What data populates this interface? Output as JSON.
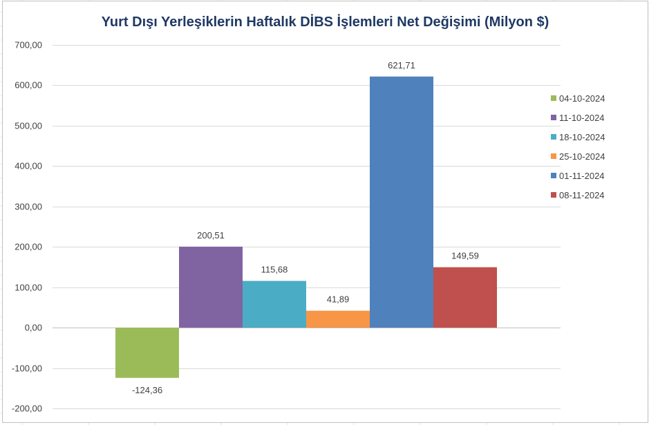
{
  "chart_data": {
    "type": "bar",
    "title": "Yurt Dışı Yerleşiklerin Haftalık DİBS İşlemleri Net Değişimi (Milyon $)",
    "xlabel": "",
    "ylabel": "",
    "ylim": [
      -200,
      700
    ],
    "yticks": [
      -200,
      -100,
      0,
      100,
      200,
      300,
      400,
      500,
      600,
      700
    ],
    "ytick_labels": [
      "-200,00",
      "-100,00",
      "0,00",
      "100,00",
      "200,00",
      "300,00",
      "400,00",
      "500,00",
      "600,00",
      "700,00"
    ],
    "grid": true,
    "legend_position": "right",
    "series": [
      {
        "name": "04-10-2024",
        "values": [
          -124.36
        ],
        "label": "-124,36",
        "color": "#9bbb59"
      },
      {
        "name": "11-10-2024",
        "values": [
          200.51
        ],
        "label": "200,51",
        "color": "#8064a2"
      },
      {
        "name": "18-10-2024",
        "values": [
          115.68
        ],
        "label": "115,68",
        "color": "#4bacc6"
      },
      {
        "name": "25-10-2024",
        "values": [
          41.89
        ],
        "label": "41,89",
        "color": "#f79646"
      },
      {
        "name": "01-11-2024",
        "values": [
          621.71
        ],
        "label": "621,71",
        "color": "#4f81bd"
      },
      {
        "name": "08-11-2024",
        "values": [
          149.59
        ],
        "label": "149,59",
        "color": "#c0504d"
      }
    ]
  }
}
